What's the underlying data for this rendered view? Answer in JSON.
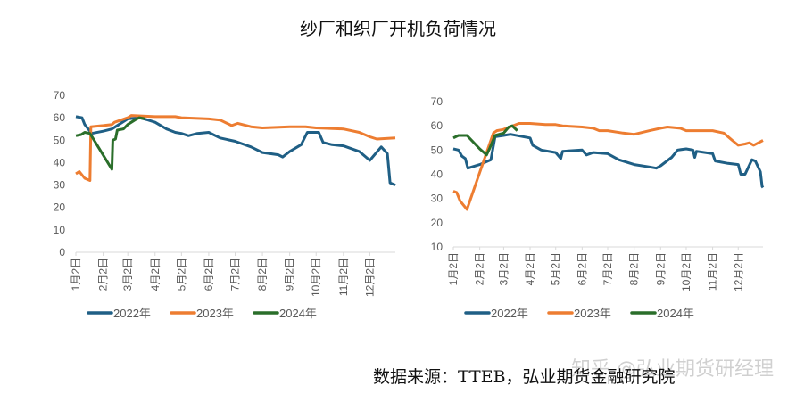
{
  "title": "纱厂和织厂开机负荷情况",
  "source": "数据来源：TTEB，弘业期货金融研究院",
  "watermark": "知乎 @弘业期货研经理",
  "colors": {
    "2022年": "#1f5f85",
    "2023年": "#ed7d31",
    "2024年": "#2a6e2a"
  },
  "chart_data": [
    {
      "type": "line",
      "ylim": [
        0,
        70
      ],
      "yticks": [
        0,
        10,
        20,
        30,
        40,
        50,
        60,
        70
      ],
      "xticks": [
        "1月2日",
        "2月2日",
        "3月2日",
        "4月2日",
        "5月2日",
        "6月2日",
        "7月2日",
        "8月2日",
        "9月2日",
        "10月2日",
        "11月2日",
        "12月2日"
      ],
      "legend": "bottom",
      "series": [
        {
          "name": "2022年",
          "points": [
            [
              "01-02",
              60.5
            ],
            [
              "01-09",
              60
            ],
            [
              "01-12",
              57
            ],
            [
              "01-20",
              53
            ],
            [
              "02-02",
              54
            ],
            [
              "02-12",
              55
            ],
            [
              "02-20",
              57
            ],
            [
              "03-02",
              59.5
            ],
            [
              "03-15",
              60
            ],
            [
              "03-25",
              59
            ],
            [
              "04-02",
              58
            ],
            [
              "04-15",
              55
            ],
            [
              "04-25",
              53.5
            ],
            [
              "05-02",
              53
            ],
            [
              "05-10",
              52
            ],
            [
              "05-20",
              53
            ],
            [
              "06-02",
              53.5
            ],
            [
              "06-15",
              51
            ],
            [
              "07-02",
              49.5
            ],
            [
              "07-20",
              47
            ],
            [
              "08-02",
              44.5
            ],
            [
              "08-20",
              43.5
            ],
            [
              "08-25",
              42.5
            ],
            [
              "09-02",
              45
            ],
            [
              "09-15",
              48
            ],
            [
              "09-22",
              53.5
            ],
            [
              "10-05",
              53.5
            ],
            [
              "10-10",
              49
            ],
            [
              "10-20",
              48
            ],
            [
              "11-02",
              47.5
            ],
            [
              "11-20",
              45
            ],
            [
              "12-02",
              41
            ],
            [
              "12-15",
              47
            ],
            [
              "12-22",
              44
            ],
            [
              "12-25",
              31
            ],
            [
              "12-31",
              30
            ]
          ]
        },
        {
          "name": "2023年",
          "points": [
            [
              "01-02",
              35
            ],
            [
              "01-06",
              36
            ],
            [
              "01-12",
              33
            ],
            [
              "01-18",
              32
            ],
            [
              "01-19",
              56
            ],
            [
              "02-02",
              56.5
            ],
            [
              "02-12",
              57
            ],
            [
              "02-15",
              58
            ],
            [
              "03-02",
              60
            ],
            [
              "03-06",
              61
            ],
            [
              "04-02",
              60.5
            ],
            [
              "04-25",
              60.5
            ],
            [
              "05-02",
              60
            ],
            [
              "06-02",
              59.5
            ],
            [
              "06-15",
              59
            ],
            [
              "06-28",
              56.5
            ],
            [
              "07-05",
              57.5
            ],
            [
              "07-20",
              56
            ],
            [
              "08-02",
              55.5
            ],
            [
              "09-02",
              56
            ],
            [
              "09-20",
              56
            ],
            [
              "10-02",
              55.5
            ],
            [
              "11-02",
              55
            ],
            [
              "11-20",
              53.5
            ],
            [
              "12-02",
              51.5
            ],
            [
              "12-10",
              50.5
            ],
            [
              "12-31",
              51
            ]
          ]
        },
        {
          "name": "2024年",
          "points": [
            [
              "01-02",
              52
            ],
            [
              "01-08",
              52.5
            ],
            [
              "01-12",
              53.5
            ],
            [
              "01-18",
              53
            ],
            [
              "02-12",
              37
            ],
            [
              "02-13",
              50
            ],
            [
              "02-16",
              50.5
            ],
            [
              "02-18",
              54.5
            ],
            [
              "02-25",
              55
            ],
            [
              "03-02",
              57
            ],
            [
              "03-10",
              59
            ],
            [
              "03-15",
              60
            ],
            [
              "03-22",
              59.5
            ]
          ]
        }
      ]
    },
    {
      "type": "line",
      "ylim": [
        10,
        70
      ],
      "yticks": [
        10,
        20,
        30,
        40,
        50,
        60,
        70
      ],
      "xticks": [
        "1月2日",
        "2月2日",
        "3月2日",
        "4月2日",
        "5月2日",
        "6月2日",
        "7月2日",
        "8月2日",
        "9月2日",
        "10月2日",
        "11月2日",
        "12月2日"
      ],
      "legend": "bottom",
      "series": [
        {
          "name": "2022年",
          "points": [
            [
              "01-02",
              50.5
            ],
            [
              "01-08",
              50
            ],
            [
              "01-12",
              47.5
            ],
            [
              "01-16",
              46.5
            ],
            [
              "01-19",
              42.5
            ],
            [
              "02-02",
              44
            ],
            [
              "02-15",
              46
            ],
            [
              "02-20",
              55.5
            ],
            [
              "03-02",
              56
            ],
            [
              "03-10",
              56.5
            ],
            [
              "04-02",
              55
            ],
            [
              "04-05",
              52
            ],
            [
              "04-15",
              50
            ],
            [
              "05-02",
              49
            ],
            [
              "05-08",
              46.5
            ],
            [
              "05-10",
              49.5
            ],
            [
              "06-02",
              50
            ],
            [
              "06-07",
              48
            ],
            [
              "06-15",
              49
            ],
            [
              "07-02",
              48.5
            ],
            [
              "07-15",
              46
            ],
            [
              "08-02",
              44
            ],
            [
              "08-20",
              43
            ],
            [
              "08-28",
              42.5
            ],
            [
              "09-02",
              43.5
            ],
            [
              "09-15",
              47
            ],
            [
              "09-22",
              50
            ],
            [
              "10-02",
              50.5
            ],
            [
              "10-10",
              50
            ],
            [
              "10-12",
              47
            ],
            [
              "10-14",
              49.5
            ],
            [
              "11-02",
              48.5
            ],
            [
              "11-05",
              45.5
            ],
            [
              "11-20",
              44.5
            ],
            [
              "12-02",
              44
            ],
            [
              "12-05",
              40
            ],
            [
              "12-10",
              40
            ],
            [
              "12-18",
              46
            ],
            [
              "12-22",
              45.5
            ],
            [
              "12-28",
              41
            ],
            [
              "12-30",
              35
            ],
            [
              "12-31",
              34.5
            ]
          ]
        },
        {
          "name": "2023年",
          "points": [
            [
              "01-02",
              33
            ],
            [
              "01-06",
              32.5
            ],
            [
              "01-10",
              29
            ],
            [
              "01-18",
              25.5
            ],
            [
              "02-10",
              49
            ],
            [
              "02-18",
              57
            ],
            [
              "02-22",
              58
            ],
            [
              "03-02",
              58.5
            ],
            [
              "03-20",
              61
            ],
            [
              "04-02",
              61
            ],
            [
              "04-20",
              60.5
            ],
            [
              "05-02",
              60.5
            ],
            [
              "05-10",
              60
            ],
            [
              "06-02",
              59.5
            ],
            [
              "06-15",
              59
            ],
            [
              "06-22",
              58
            ],
            [
              "07-02",
              58
            ],
            [
              "07-20",
              57
            ],
            [
              "08-02",
              56.5
            ],
            [
              "08-20",
              58
            ],
            [
              "09-02",
              59
            ],
            [
              "09-10",
              59.5
            ],
            [
              "09-25",
              59
            ],
            [
              "10-02",
              58
            ],
            [
              "11-02",
              58
            ],
            [
              "11-15",
              57
            ],
            [
              "11-25",
              54
            ],
            [
              "12-02",
              52
            ],
            [
              "12-10",
              52.5
            ],
            [
              "12-15",
              53
            ],
            [
              "12-20",
              52
            ],
            [
              "12-31",
              54
            ]
          ]
        },
        {
          "name": "2024年",
          "points": [
            [
              "01-02",
              55
            ],
            [
              "01-08",
              56
            ],
            [
              "01-18",
              56
            ],
            [
              "02-02",
              50.5
            ],
            [
              "02-10",
              48
            ],
            [
              "02-14",
              51
            ],
            [
              "02-20",
              56
            ],
            [
              "03-02",
              57
            ],
            [
              "03-08",
              59.5
            ],
            [
              "03-12",
              60
            ],
            [
              "03-18",
              58
            ]
          ]
        }
      ]
    }
  ]
}
